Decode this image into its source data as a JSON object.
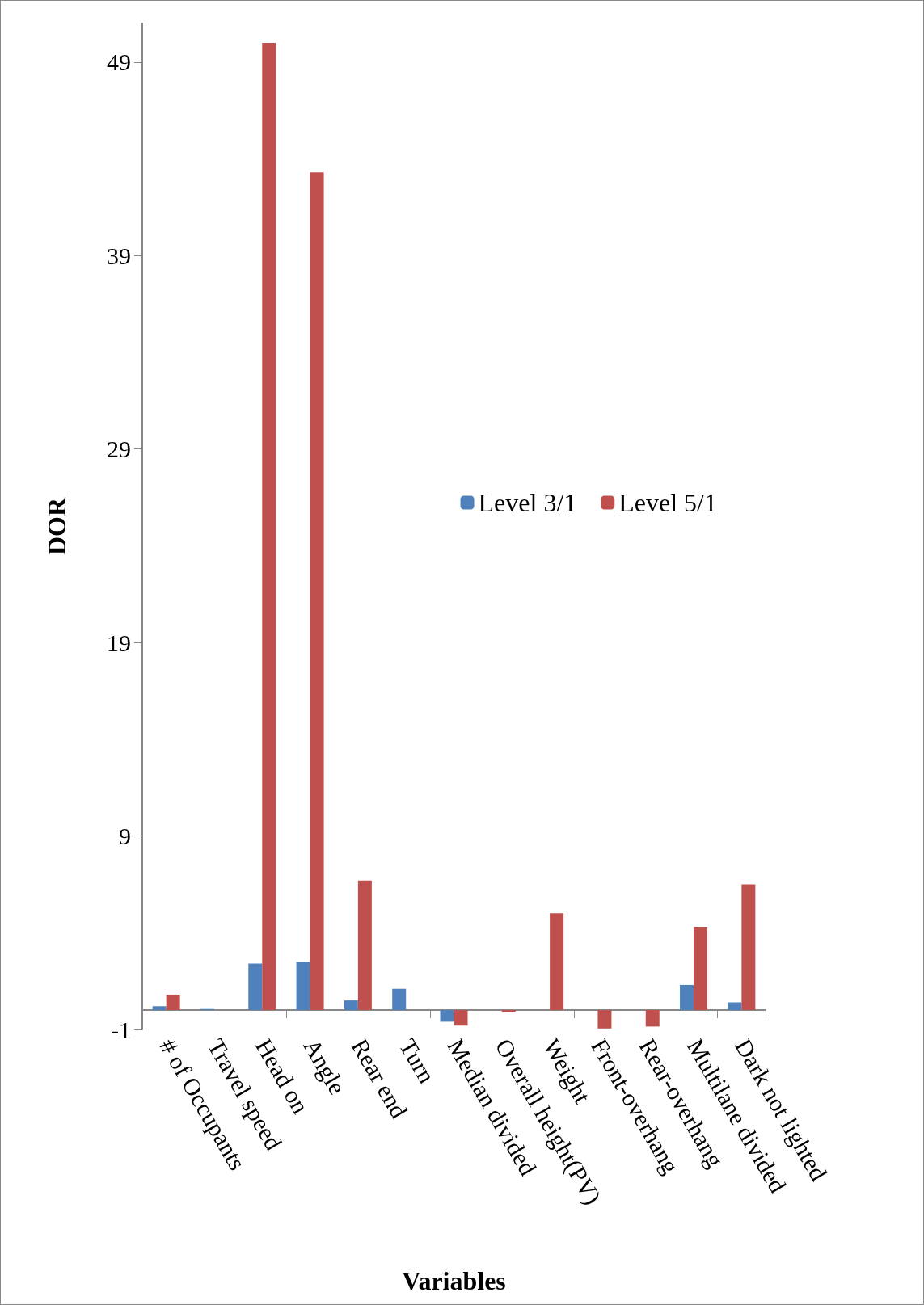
{
  "chart_data": {
    "type": "bar",
    "xlabel": "Variables",
    "ylabel": "DOR",
    "categories": [
      "# of Occupants",
      "Travel speed",
      "Head on",
      "Angle",
      "Rear end",
      "Turn",
      "Median divided",
      "Overall height(PV)",
      "Weight",
      "Front-overhang",
      "Rear-overhang",
      "Multilane divided",
      "Dark not lighted"
    ],
    "series": [
      {
        "name": "Level 3/1",
        "color": "#4f81bd",
        "values": [
          0.2,
          0.05,
          2.4,
          2.5,
          0.5,
          1.1,
          -0.6,
          0,
          0,
          0,
          0,
          1.3,
          0.4
        ]
      },
      {
        "name": "Level 5/1",
        "color": "#c0504d",
        "values": [
          0.8,
          0,
          50,
          43.3,
          6.7,
          0,
          -0.8,
          -0.1,
          5,
          -0.95,
          -0.85,
          4.3,
          6.5
        ]
      }
    ],
    "ylim": [
      -1,
      51
    ],
    "yticks": [
      -1,
      9,
      19,
      29,
      39,
      49
    ],
    "grid": false,
    "legend": "right"
  }
}
